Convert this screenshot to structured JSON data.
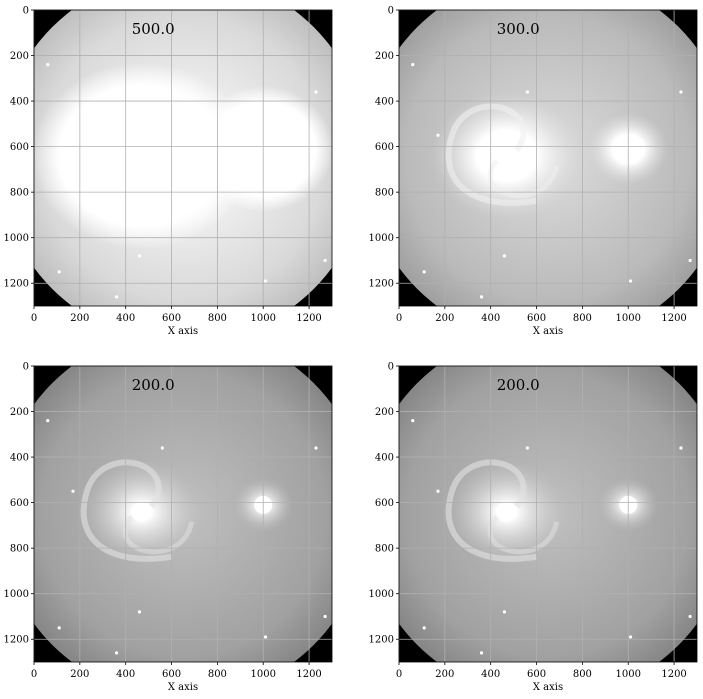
{
  "chart_data": [
    {
      "type": "image",
      "title": "500.0",
      "xlabel": "X axis",
      "ylabel": "",
      "xlim": [
        0,
        1300
      ],
      "ylim": [
        1300,
        0
      ],
      "xticks": [
        "0",
        "200",
        "400",
        "600",
        "800",
        "1000",
        "1200"
      ],
      "yticks": [
        "0",
        "200",
        "400",
        "600",
        "800",
        "1000",
        "1200"
      ],
      "grid": true,
      "colormap": "gray",
      "brightness": 1.0,
      "objects": [
        {
          "name": "galaxy-main",
          "x": 470,
          "y": 640
        },
        {
          "name": "galaxy-companion",
          "x": 1000,
          "y": 610
        }
      ]
    },
    {
      "type": "image",
      "title": "300.0",
      "xlabel": "X axis",
      "ylabel": "",
      "xlim": [
        0,
        1300
      ],
      "ylim": [
        1300,
        0
      ],
      "xticks": [
        "0",
        "200",
        "400",
        "600",
        "800",
        "1000",
        "1200"
      ],
      "yticks": [
        "0",
        "200",
        "400",
        "600",
        "800",
        "1000",
        "1200"
      ],
      "grid": true,
      "colormap": "gray",
      "brightness": 0.7,
      "objects": [
        {
          "name": "galaxy-main",
          "x": 470,
          "y": 640
        },
        {
          "name": "galaxy-companion",
          "x": 1000,
          "y": 610
        }
      ]
    },
    {
      "type": "image",
      "title": "200.0",
      "xlabel": "X axis",
      "ylabel": "",
      "xlim": [
        0,
        1300
      ],
      "ylim": [
        1300,
        0
      ],
      "xticks": [
        "0",
        "200",
        "400",
        "600",
        "800",
        "1000",
        "1200"
      ],
      "yticks": [
        "0",
        "200",
        "400",
        "600",
        "800",
        "1000",
        "1200"
      ],
      "grid": true,
      "colormap": "gray",
      "brightness": 0.45,
      "objects": [
        {
          "name": "galaxy-main",
          "x": 470,
          "y": 640
        },
        {
          "name": "galaxy-companion",
          "x": 1000,
          "y": 610
        }
      ]
    },
    {
      "type": "image",
      "title": "200.0",
      "xlabel": "X axis",
      "ylabel": "",
      "xlim": [
        0,
        1300
      ],
      "ylim": [
        1300,
        0
      ],
      "xticks": [
        "0",
        "200",
        "400",
        "600",
        "800",
        "1000",
        "1200"
      ],
      "yticks": [
        "0",
        "200",
        "400",
        "600",
        "800",
        "1000",
        "1200"
      ],
      "grid": true,
      "colormap": "gray",
      "brightness": 0.45,
      "objects": [
        {
          "name": "galaxy-main",
          "x": 470,
          "y": 640
        },
        {
          "name": "galaxy-companion",
          "x": 1000,
          "y": 610
        }
      ]
    }
  ]
}
